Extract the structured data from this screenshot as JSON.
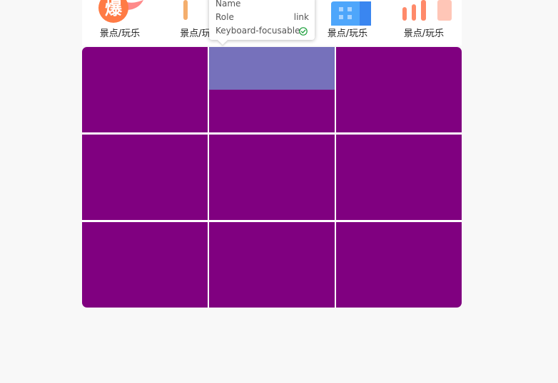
{
  "categories": [
    {
      "label": "景点/玩乐",
      "icon": "hot-fire-icon",
      "icon_text": "爆"
    },
    {
      "label": "景点/玩",
      "icon": "pencil-icon"
    },
    {
      "label": "",
      "icon": "hidden-icon"
    },
    {
      "label": "景点/玩乐",
      "icon": "building-icon"
    },
    {
      "label": "景点/玩乐",
      "icon": "bar-chart-icon"
    }
  ],
  "grid": {
    "rows": 3,
    "cols": 3,
    "tile_color": "#800080",
    "hover_color": "#7671bb",
    "hovered_tile": "tile-r1-c2"
  },
  "tooltip": {
    "name_key": "Name",
    "name_value": "",
    "role_key": "Role",
    "role_value": "link",
    "focusable_key": "Keyboard-focusable",
    "focusable_icon": "check-circle-icon",
    "check_color": "#1a9e3a"
  }
}
